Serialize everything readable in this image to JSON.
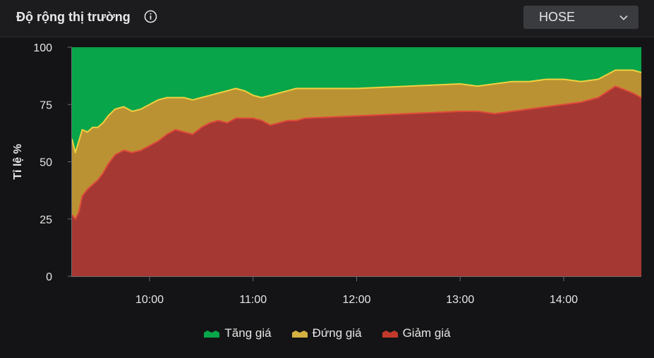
{
  "header": {
    "title": "Độ rộng thị trường",
    "info_icon": "info-icon",
    "exchange": {
      "selected": "HOSE",
      "icon": "chevron-down-icon"
    }
  },
  "colors": {
    "up": "#08a54a",
    "flat": "#bb9233",
    "down": "#a53833",
    "up_line": "#20c060",
    "flat_line": "#f0d040",
    "down_line": "#e04a3a"
  },
  "chart_data": {
    "type": "area",
    "stacked": true,
    "title": "",
    "xlabel": "",
    "ylabel": "Tỉ lệ %",
    "ylim": [
      0,
      100
    ],
    "yticks": [
      0,
      25,
      50,
      75,
      100
    ],
    "xticks": [
      "10:00",
      "11:00",
      "12:00",
      "13:00",
      "14:00"
    ],
    "x": [
      "09:15",
      "09:17",
      "09:19",
      "09:21",
      "09:24",
      "09:27",
      "09:30",
      "09:33",
      "09:36",
      "09:40",
      "09:45",
      "09:50",
      "09:55",
      "10:00",
      "10:05",
      "10:10",
      "10:15",
      "10:20",
      "10:25",
      "10:30",
      "10:35",
      "10:40",
      "10:45",
      "10:50",
      "10:55",
      "11:00",
      "11:05",
      "11:10",
      "11:15",
      "11:20",
      "11:25",
      "11:30",
      "12:00",
      "12:30",
      "13:00",
      "13:10",
      "13:20",
      "13:30",
      "13:40",
      "13:50",
      "14:00",
      "14:10",
      "14:20",
      "14:30",
      "14:40",
      "14:45"
    ],
    "series": [
      {
        "name": "Giảm giá",
        "values": [
          27,
          25,
          28,
          35,
          38,
          40,
          42,
          45,
          49,
          53,
          55,
          54,
          55,
          57,
          59,
          62,
          64,
          63,
          62,
          65,
          67,
          68,
          67,
          69,
          69,
          69,
          68,
          66,
          67,
          68,
          68,
          69,
          70,
          71,
          72,
          72,
          71,
          72,
          73,
          74,
          75,
          76,
          78,
          83,
          80,
          78
        ]
      },
      {
        "name": "Đứng giá",
        "values": [
          60,
          54,
          59,
          64,
          63,
          65,
          65,
          67,
          70,
          73,
          74,
          72,
          73,
          75,
          77,
          78,
          78,
          78,
          77,
          78,
          79,
          80,
          81,
          82,
          81,
          79,
          78,
          79,
          80,
          81,
          82,
          82,
          82,
          83,
          84,
          83,
          84,
          85,
          85,
          86,
          86,
          85,
          86,
          90,
          90,
          89
        ]
      },
      {
        "name": "Tăng giá",
        "values": [
          100,
          100,
          100,
          100,
          100,
          100,
          100,
          100,
          100,
          100,
          100,
          100,
          100,
          100,
          100,
          100,
          100,
          100,
          100,
          100,
          100,
          100,
          100,
          100,
          100,
          100,
          100,
          100,
          100,
          100,
          100,
          100,
          100,
          100,
          100,
          100,
          100,
          100,
          100,
          100,
          100,
          100,
          100,
          100,
          100,
          100
        ]
      }
    ],
    "legend": {
      "position": "bottom",
      "items": [
        {
          "name": "Tăng giá",
          "color": "#08a54a"
        },
        {
          "name": "Đứng giá",
          "color": "#d4b040"
        },
        {
          "name": "Giảm giá",
          "color": "#c0392b"
        }
      ]
    },
    "grid": false
  }
}
